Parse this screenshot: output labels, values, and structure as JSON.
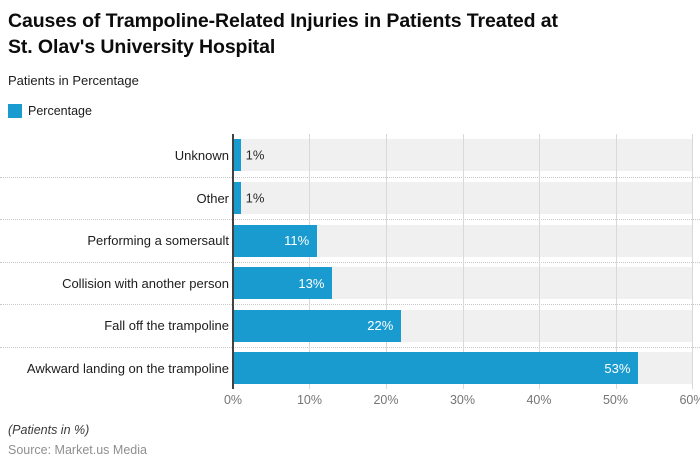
{
  "chart_data": {
    "type": "bar",
    "orientation": "horizontal",
    "title": "Causes of Trampoline-Related Injuries in Patients Treated at\nSt. Olav's University Hospital",
    "subtitle": "Patients in Percentage",
    "legend_label": "Percentage",
    "categories": [
      "Unknown",
      "Other",
      "Performing a somersault",
      "Collision with another person",
      "Fall off the trampoline",
      "Awkward landing on the trampoline"
    ],
    "values": [
      1,
      1,
      11,
      13,
      22,
      53
    ],
    "value_labels": [
      "1%",
      "1%",
      "11%",
      "13%",
      "22%",
      "53%"
    ],
    "xlabel": "",
    "ylabel": "",
    "xlim": [
      0,
      60
    ],
    "x_ticks": [
      "0%",
      "10%",
      "20%",
      "30%",
      "40%",
      "50%",
      "60%"
    ],
    "grid": true,
    "legend_position": "top-left",
    "bar_color": "#1a9bd0",
    "track_color": "#f0f0f0",
    "footnote": "(Patients in %)",
    "source": "Source: Market.us Media"
  }
}
